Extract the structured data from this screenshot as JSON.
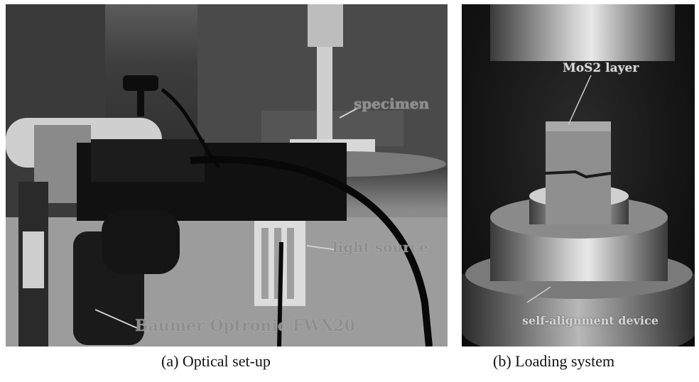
{
  "panel_a": {
    "labels": {
      "specimen": "specimen",
      "light_source": "light source",
      "camera": "Baumer Optronic FWX20"
    },
    "caption": "(a) Optical set-up"
  },
  "panel_b": {
    "labels": {
      "layer": "MoS2 layer",
      "device": "self-alignment device"
    },
    "caption": "(b) Loading system"
  }
}
